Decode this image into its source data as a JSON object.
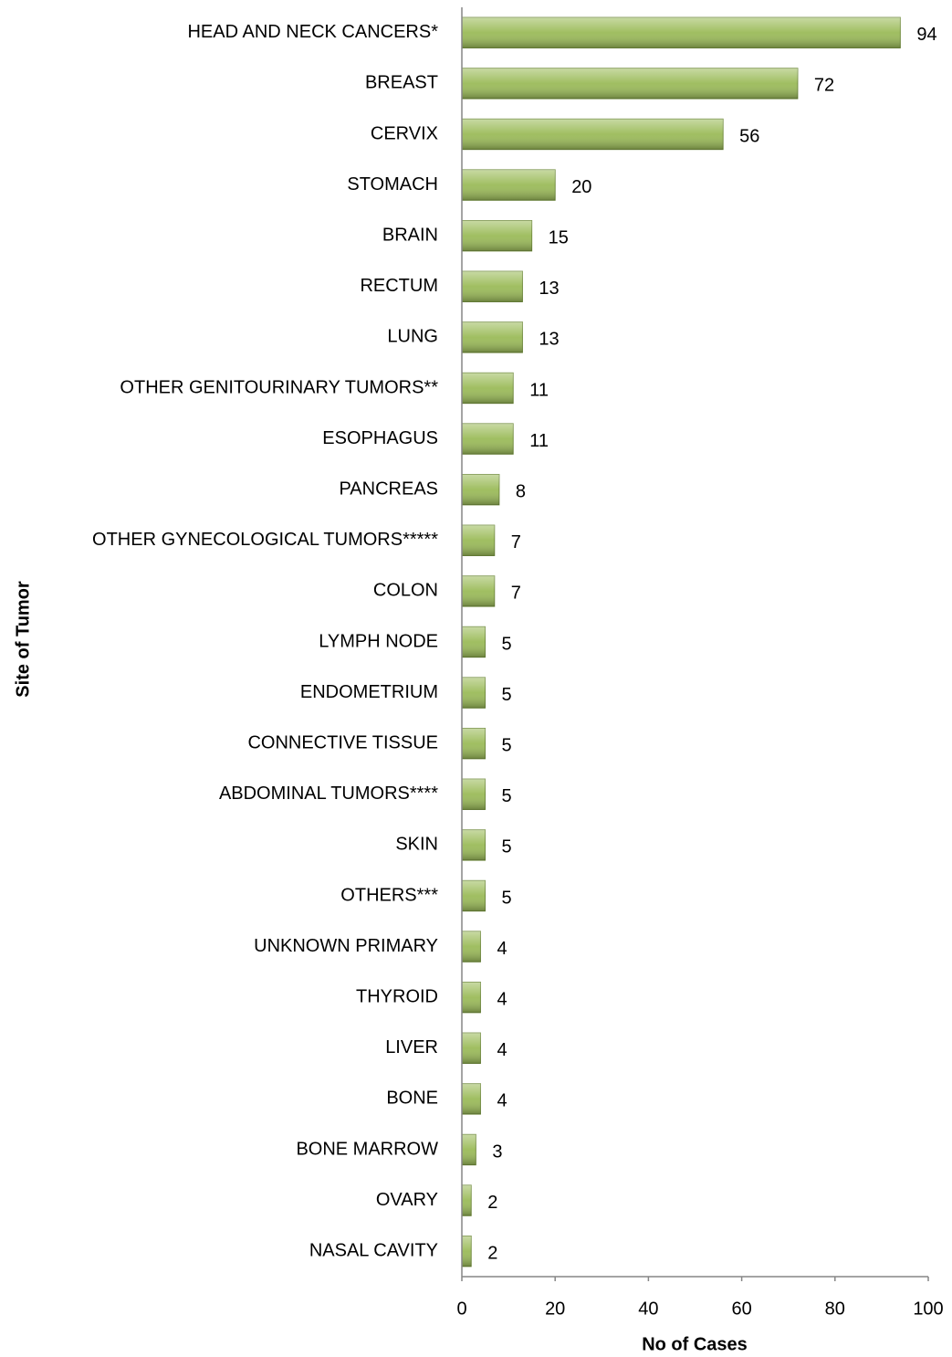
{
  "chart_data": {
    "type": "bar",
    "orientation": "horizontal",
    "x_label": "No of Cases",
    "y_label": "Site of Tumor",
    "categories": [
      "HEAD AND NECK CANCERS*",
      "BREAST",
      "CERVIX",
      "STOMACH",
      "BRAIN",
      "RECTUM",
      "LUNG",
      "OTHER GENITOURINARY TUMORS**",
      "ESOPHAGUS",
      "PANCREAS",
      "OTHER GYNECOLOGICAL TUMORS*****",
      "COLON",
      "LYMPH NODE",
      "ENDOMETRIUM",
      "CONNECTIVE TISSUE",
      "ABDOMINAL TUMORS****",
      "SKIN",
      "OTHERS***",
      "UNKNOWN PRIMARY",
      "THYROID",
      "LIVER",
      "BONE",
      "BONE MARROW",
      "OVARY",
      "NASAL CAVITY"
    ],
    "values": [
      94,
      72,
      56,
      20,
      15,
      13,
      13,
      11,
      11,
      8,
      7,
      7,
      5,
      5,
      5,
      5,
      5,
      5,
      4,
      4,
      4,
      4,
      3,
      2,
      2
    ],
    "color": "#9bbb59",
    "xlim": [
      0,
      100
    ],
    "xticks": [
      0,
      20,
      40,
      60,
      80,
      100
    ],
    "grid": false
  }
}
